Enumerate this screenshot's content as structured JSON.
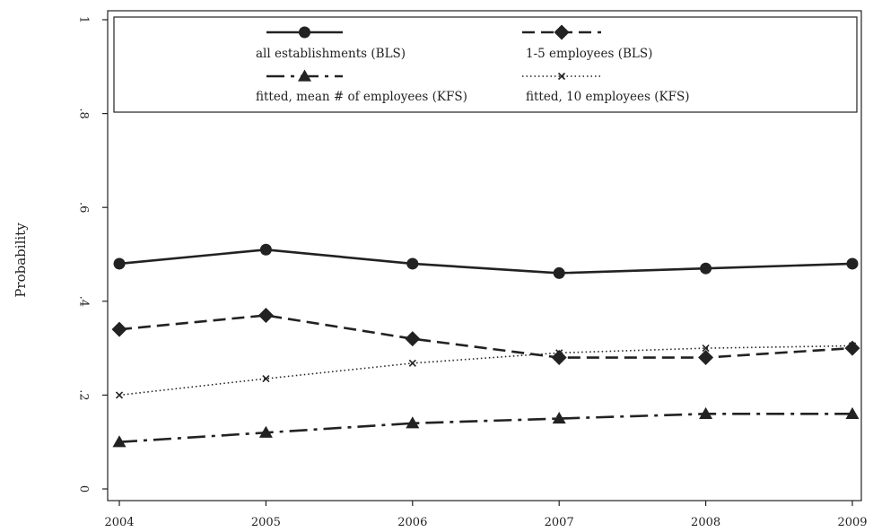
{
  "chart_data": {
    "type": "line",
    "x": [
      2004,
      2005,
      2006,
      2007,
      2008,
      2009
    ],
    "xlabel": "",
    "ylabel": "Probability",
    "xlim": [
      2004,
      2009
    ],
    "ylim": [
      0,
      1
    ],
    "yticks": [
      0,
      0.2,
      0.4,
      0.6,
      0.8,
      1
    ],
    "ytick_labels": [
      "0",
      ".2",
      ".4",
      ".6",
      ".8",
      "1"
    ],
    "xtick_labels": [
      "2004",
      "2005",
      "2006",
      "2007",
      "2008",
      "2009"
    ],
    "grid": false,
    "legend_position": "top",
    "series": [
      {
        "name": "all establishments (BLS)",
        "values": [
          0.48,
          0.51,
          0.48,
          0.46,
          0.47,
          0.48
        ],
        "style": "solid",
        "marker": "circle"
      },
      {
        "name": "1-5 employees (BLS)",
        "values": [
          0.34,
          0.37,
          0.32,
          0.28,
          0.28,
          0.3
        ],
        "style": "dashed",
        "marker": "diamond"
      },
      {
        "name": "fitted, mean # of employees (KFS)",
        "values": [
          0.1,
          0.12,
          0.14,
          0.15,
          0.16,
          0.16
        ],
        "style": "dashdot",
        "marker": "triangle"
      },
      {
        "name": "fitted, 10 employees (KFS)",
        "values": [
          0.2,
          0.235,
          0.268,
          0.29,
          0.3,
          0.305
        ],
        "style": "dotted",
        "marker": "x"
      }
    ],
    "color": "#222222"
  }
}
